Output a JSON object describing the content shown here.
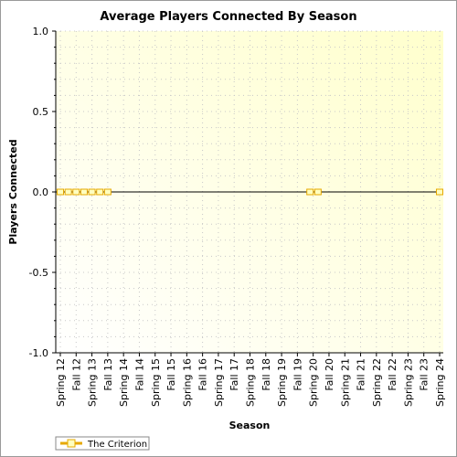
{
  "chart_data": {
    "type": "line",
    "title": "Average Players Connected By Season",
    "xlabel": "Season",
    "ylabel": "Players Connected",
    "ylim": [
      -1.0,
      1.0
    ],
    "y_ticks": [
      "1.0",
      "0.5",
      "0.0",
      "-0.5",
      "-1.0"
    ],
    "y_tick_values": [
      1.0,
      0.5,
      0.0,
      -0.5,
      -1.0
    ],
    "grid": true,
    "legend_placement": "bottom-left",
    "categories": [
      "Spring 12",
      "Fall 12",
      "Spring 13",
      "Fall 13",
      "Spring 14",
      "Fall 14",
      "Spring 15",
      "Fall 15",
      "Spring 16",
      "Fall 16",
      "Spring 17",
      "Fall 17",
      "Spring 18",
      "Fall 18",
      "Spring 19",
      "Fall 19",
      "Spring 20",
      "Fall 20",
      "Spring 21",
      "Fall 21",
      "Spring 22",
      "Fall 22",
      "Spring 23",
      "Fall 23",
      "Spring 24"
    ],
    "series": [
      {
        "name": "The Criterion",
        "color": "#e6a800",
        "points": [
          {
            "x": 0,
            "y": 0.0
          },
          {
            "x": 0.5,
            "y": 0.0
          },
          {
            "x": 1,
            "y": 0.0
          },
          {
            "x": 1.5,
            "y": 0.0
          },
          {
            "x": 2,
            "y": 0.0
          },
          {
            "x": 2.5,
            "y": 0.0
          },
          {
            "x": 3,
            "y": 0.0
          },
          {
            "x": 15.8,
            "y": 0.0
          },
          {
            "x": 16.3,
            "y": 0.0
          },
          {
            "x": 24,
            "y": 0.0
          }
        ]
      }
    ]
  },
  "colors": {
    "plot_bg_light": "#ffffd0",
    "plot_bg_white": "#ffffff",
    "series_line": "#000000",
    "marker_fill": "#ffffc0",
    "marker_stroke": "#e6a800"
  }
}
